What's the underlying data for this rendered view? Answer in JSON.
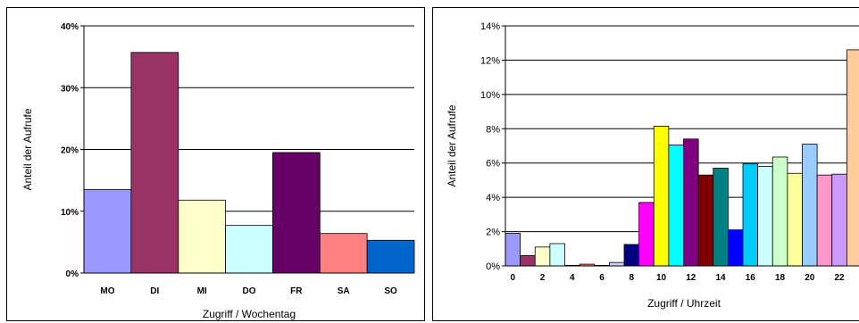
{
  "chart_data": [
    {
      "type": "bar",
      "xlabel": "Zugriff / Wochentag",
      "ylabel": "Anteil der Aufrufe",
      "ylim": [
        0,
        40
      ],
      "y_ticks": [
        "0%",
        "10%",
        "20%",
        "30%",
        "40%"
      ],
      "grid": true,
      "categories": [
        "MO",
        "DI",
        "MI",
        "DO",
        "FR",
        "SA",
        "SO"
      ],
      "values": [
        13.5,
        35.7,
        11.8,
        7.7,
        19.5,
        6.4,
        5.3
      ],
      "colors": [
        "#9999FF",
        "#993366",
        "#FFFFCC",
        "#CCFFFF",
        "#660066",
        "#FF8080",
        "#0066CC"
      ]
    },
    {
      "type": "bar",
      "xlabel": "Zugriff / Uhrzeit",
      "ylabel": "Anteil der Aufrufe",
      "ylim": [
        0,
        14
      ],
      "y_ticks": [
        "0%",
        "2%",
        "4%",
        "6%",
        "8%",
        "10%",
        "12%",
        "14%"
      ],
      "grid": true,
      "categories": [
        "0",
        "1",
        "2",
        "3",
        "4",
        "5",
        "6",
        "7",
        "8",
        "9",
        "10",
        "11",
        "12",
        "13",
        "14",
        "15",
        "16",
        "17",
        "18",
        "19",
        "20",
        "21",
        "22",
        "23"
      ],
      "x_tick_labels": [
        "0",
        "2",
        "4",
        "6",
        "8",
        "10",
        "12",
        "14",
        "16",
        "18",
        "20",
        "22"
      ],
      "values": [
        1.9,
        0.6,
        1.1,
        1.3,
        0.0,
        0.1,
        0.0,
        0.2,
        1.25,
        3.7,
        8.15,
        7.05,
        7.4,
        5.3,
        5.7,
        2.1,
        5.95,
        5.8,
        6.35,
        5.4,
        7.1,
        5.3,
        5.35,
        12.6
      ],
      "colors": [
        "#9999FF",
        "#993366",
        "#FFFFCC",
        "#CCFFFF",
        "#660066",
        "#FF8080",
        "#0066CC",
        "#CCCCFF",
        "#000080",
        "#FF00FF",
        "#FFFF00",
        "#00FFFF",
        "#800080",
        "#800000",
        "#008080",
        "#0000FF",
        "#00CCFF",
        "#CCFFFF",
        "#CCFFCC",
        "#FFFF99",
        "#99CCFF",
        "#FF99CC",
        "#CC99FF",
        "#FFCC99"
      ]
    }
  ]
}
